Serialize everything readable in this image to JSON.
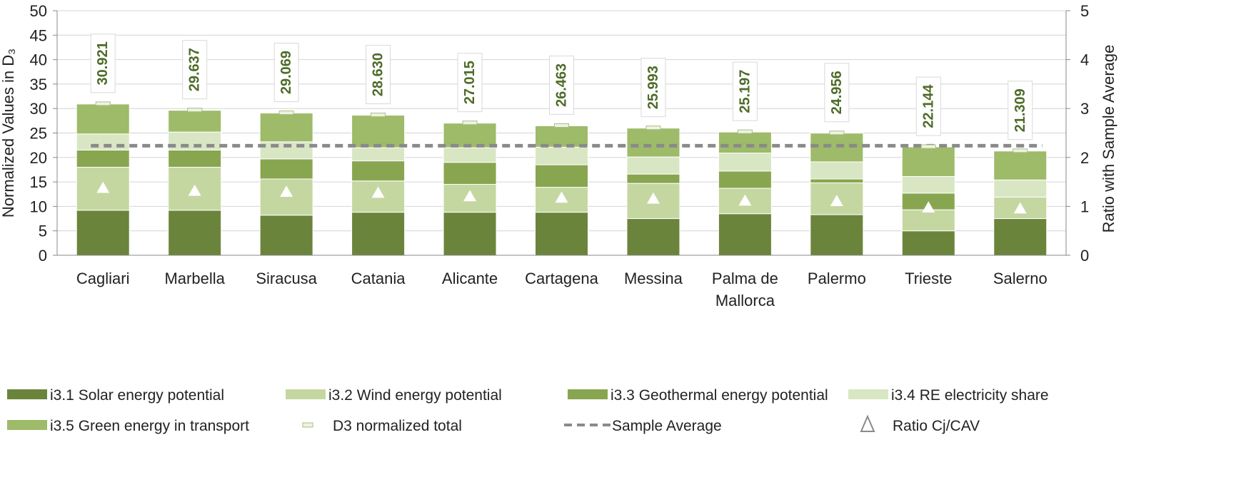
{
  "chart_data": {
    "type": "bar",
    "stacked": true,
    "categories": [
      "Cagliari",
      "Marbella",
      "Siracusa",
      "Catania",
      "Alicante",
      "Cartagena",
      "Messina",
      "Palma de Mallorca",
      "Palermo",
      "Trieste",
      "Salerno"
    ],
    "category_lines": [
      [
        "Cagliari"
      ],
      [
        "Marbella"
      ],
      [
        "Siracusa"
      ],
      [
        "Catania"
      ],
      [
        "Alicante"
      ],
      [
        "Cartagena"
      ],
      [
        "Messina"
      ],
      [
        "Palma de",
        "Mallorca"
      ],
      [
        "Palermo"
      ],
      [
        "Trieste"
      ],
      [
        "Salerno"
      ]
    ],
    "series": [
      {
        "name": "i3.1 Solar energy potential",
        "color": "#6b843b",
        "values": [
          9.2,
          9.2,
          8.2,
          8.8,
          8.8,
          8.8,
          7.5,
          8.5,
          8.3,
          5.0,
          7.5
        ]
      },
      {
        "name": "i3.2 Wind energy potential",
        "color": "#c5d7a1",
        "values": [
          8.8,
          8.8,
          7.4,
          6.4,
          5.7,
          5.1,
          7.2,
          5.2,
          6.5,
          4.3,
          4.4
        ]
      },
      {
        "name": "i3.3 Geothermal energy potential",
        "color": "#88a64f",
        "values": [
          3.5,
          3.5,
          4.1,
          4.1,
          4.5,
          4.6,
          1.9,
          3.5,
          0.8,
          3.4,
          0.0
        ]
      },
      {
        "name": "i3.4 RE electricity share",
        "color": "#d9e6c4",
        "values": [
          3.3,
          3.7,
          3.5,
          2.7,
          3.0,
          3.6,
          3.5,
          3.7,
          3.5,
          3.4,
          3.5
        ]
      },
      {
        "name": "i3.5 Green energy in transport",
        "color": "#9dbb68",
        "values": [
          6.121,
          4.437,
          5.869,
          6.63,
          5.015,
          4.363,
          5.893,
          4.297,
          5.856,
          6.044,
          5.909
        ]
      }
    ],
    "totals": [
      30.921,
      29.637,
      29.069,
      28.63,
      27.015,
      26.463,
      25.993,
      25.197,
      24.956,
      22.144,
      21.309
    ],
    "total_labels": [
      "30.921",
      "29.637",
      "29.069",
      "28.630",
      "27.015",
      "26.463",
      "25.993",
      "25.197",
      "24.956",
      "22.144",
      "21.309"
    ],
    "ratio_values": [
      1.38,
      1.32,
      1.3,
      1.28,
      1.21,
      1.18,
      1.16,
      1.12,
      1.11,
      0.98,
      0.96
    ],
    "sample_average": 2.24,
    "ylabel": "Normalized Values in D₃",
    "y2label": "Ratio with Sample Average",
    "ylim": [
      0,
      50
    ],
    "y_ticks": [
      0,
      5,
      10,
      15,
      20,
      25,
      30,
      35,
      40,
      45,
      50
    ],
    "y2lim": [
      0,
      5
    ],
    "y2_ticks": [
      0,
      1,
      2,
      3,
      4,
      5
    ],
    "legend_extra": {
      "total": "D3 normalized total",
      "average": "Sample Average",
      "ratio": "Ratio Cj/CAV"
    },
    "legend_position": "bottom",
    "grid": true
  }
}
